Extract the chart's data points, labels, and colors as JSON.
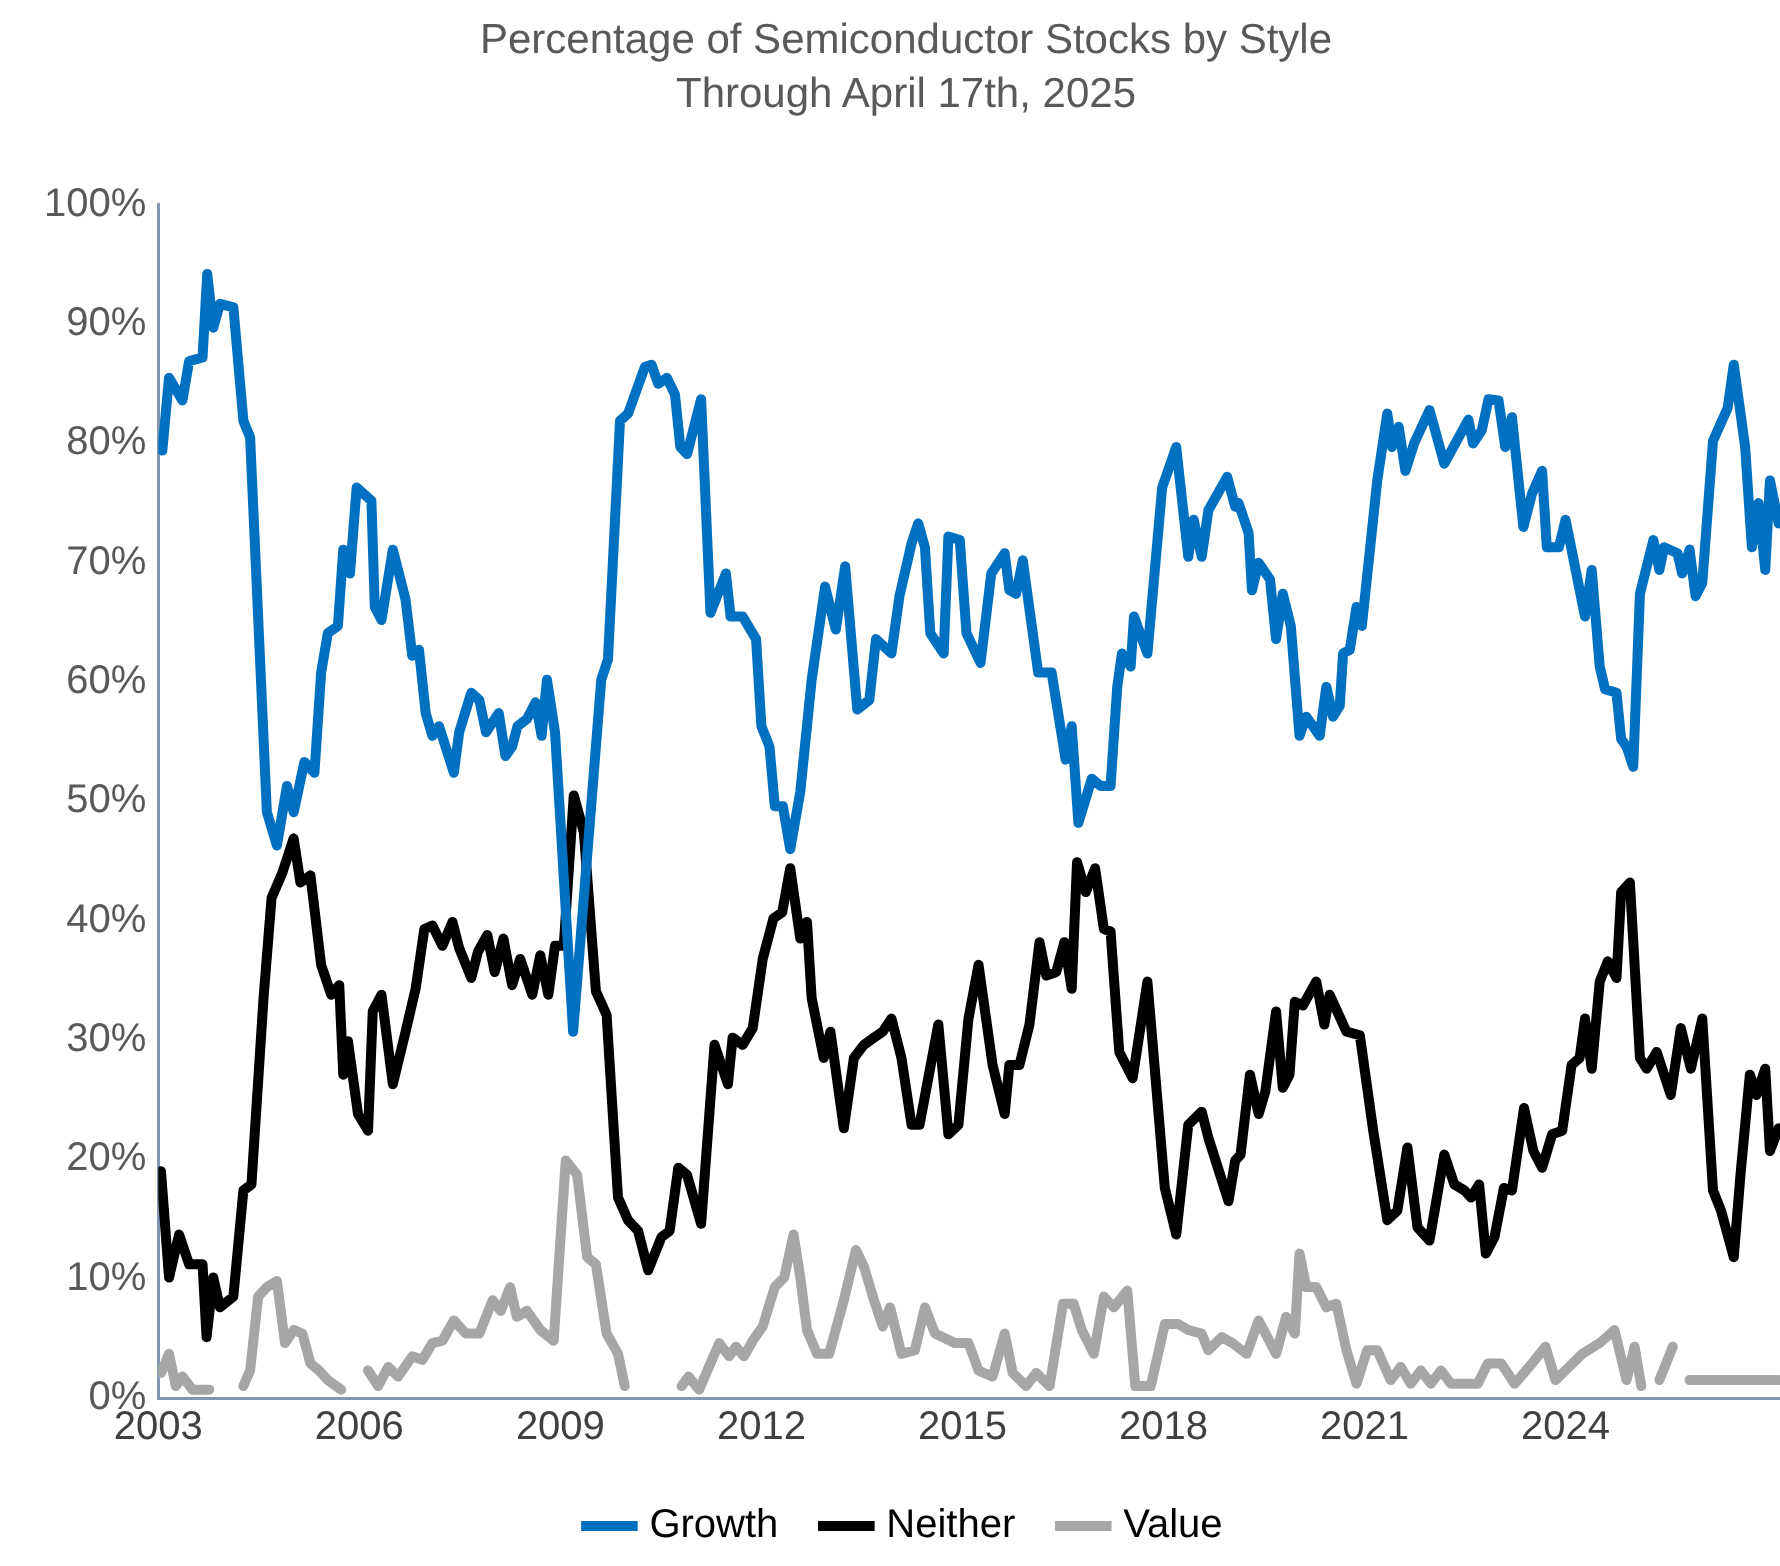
{
  "chart_data": {
    "type": "line",
    "title": "Percentage of Semiconductor Stocks by Style",
    "subtitle": "Through April 17th, 2025",
    "xlim": [
      2003,
      2027.2
    ],
    "xticks": [
      2003,
      2006,
      2009,
      2012,
      2015,
      2018,
      2021,
      2024
    ],
    "ylim": [
      0,
      100
    ],
    "yticks": [
      {
        "value": 0,
        "label": "0%"
      },
      {
        "value": 10,
        "label": "10%"
      },
      {
        "value": 20,
        "label": "20%"
      },
      {
        "value": 30,
        "label": "30%"
      },
      {
        "value": 40,
        "label": "40%"
      },
      {
        "value": 50,
        "label": "50%"
      },
      {
        "value": 60,
        "label": "60%"
      },
      {
        "value": 70,
        "label": "70%"
      },
      {
        "value": 80,
        "label": "80%"
      },
      {
        "value": 90,
        "label": "90%"
      },
      {
        "value": 100,
        "label": "100%"
      }
    ],
    "grid": false,
    "legend": "bottom",
    "marker": "none",
    "line_style": "solid",
    "series": [
      {
        "name": "Growth",
        "color": "#0070c0",
        "x": [
          2003.06,
          2003.16,
          2003.36,
          2003.46,
          2003.66,
          2003.73,
          2003.82,
          2003.92,
          2004.12,
          2004.27,
          2004.37,
          2004.62,
          2004.77,
          2004.92,
          2005.02,
          2005.18,
          2005.33,
          2005.43,
          2005.53,
          2005.68,
          2005.76,
          2005.86,
          2005.96,
          2006.18,
          2006.23,
          2006.33,
          2006.5,
          2006.69,
          2006.79,
          2006.89,
          2006.99,
          2007.09,
          2007.19,
          2007.41,
          2007.49,
          2007.67,
          2007.79,
          2007.89,
          2008.08,
          2008.18,
          2008.28,
          2008.36,
          2008.5,
          2008.63,
          2008.72,
          2008.8,
          2008.92,
          2009.19,
          2009.61,
          2009.71,
          2009.89,
          2010.01,
          2010.26,
          2010.36,
          2010.46,
          2010.59,
          2010.71,
          2010.79,
          2010.89,
          2011.1,
          2011.24,
          2011.47,
          2011.54,
          2011.72,
          2011.92,
          2012.0,
          2012.12,
          2012.2,
          2012.32,
          2012.43,
          2012.58,
          2012.75,
          2012.95,
          2013.11,
          2013.25,
          2013.43,
          2013.61,
          2013.71,
          2013.94,
          2014.06,
          2014.24,
          2014.34,
          2014.44,
          2014.52,
          2014.72,
          2014.79,
          2014.96,
          2015.06,
          2015.27,
          2015.43,
          2015.63,
          2015.7,
          2015.8,
          2015.9,
          2016.13,
          2016.33,
          2016.54,
          2016.63,
          2016.73,
          2016.93,
          2017.06,
          2017.21,
          2017.31,
          2017.38,
          2017.51,
          2017.56,
          2017.76,
          2017.98,
          2018.19,
          2018.37,
          2018.45,
          2018.57,
          2018.67,
          2018.95,
          2019.07,
          2019.12,
          2019.27,
          2019.32,
          2019.42,
          2019.59,
          2019.68,
          2019.78,
          2019.9,
          2020.03,
          2020.13,
          2020.33,
          2020.43,
          2020.53,
          2020.63,
          2020.68,
          2020.78,
          2020.88,
          2020.96,
          2021.19,
          2021.34,
          2021.41,
          2021.51,
          2021.61,
          2021.74,
          2021.97,
          2022.19,
          2022.55,
          2022.62,
          2022.75,
          2022.85,
          2023.0,
          2023.1,
          2023.2,
          2023.37,
          2023.5,
          2023.65,
          2023.72,
          2023.9,
          2024.0,
          2024.29,
          2024.39,
          2024.51,
          2024.59,
          2024.76,
          2024.83,
          2024.91,
          2025.01,
          2025.11,
          2025.31,
          2025.4,
          2025.47,
          2025.67,
          2025.74,
          2025.85,
          2025.94,
          2026.04,
          2026.2,
          2026.42,
          2026.51,
          2026.68,
          2026.78,
          2026.88,
          2026.98,
          2027.05,
          2027.18
        ],
        "values": [
          79.4,
          85.5,
          83.6,
          86.9,
          87.2,
          94.2,
          89.7,
          91.7,
          91.4,
          81.9,
          80.5,
          49.1,
          46.3,
          51.3,
          49.1,
          53.3,
          52.4,
          60.8,
          64.1,
          64.7,
          71.1,
          69.1,
          76.3,
          75.2,
          66.3,
          65.2,
          71.1,
          66.9,
          62.2,
          62.7,
          57.4,
          55.5,
          56.3,
          52.4,
          55.8,
          59.1,
          58.5,
          55.8,
          57.4,
          53.8,
          54.6,
          56.3,
          56.9,
          58.3,
          55.5,
          60.2,
          55.8,
          30.7,
          60.2,
          61.9,
          81.9,
          82.5,
          86.4,
          86.6,
          85.0,
          85.5,
          84.1,
          79.7,
          79.1,
          83.7,
          65.8,
          69.1,
          65.5,
          65.5,
          63.6,
          56.3,
          54.6,
          49.6,
          49.6,
          46.0,
          50.8,
          60.2,
          68.0,
          64.4,
          69.7,
          57.7,
          58.5,
          63.6,
          62.4,
          67.2,
          71.6,
          73.3,
          71.3,
          64.1,
          62.4,
          72.2,
          71.9,
          64.1,
          61.6,
          69.1,
          70.8,
          67.7,
          67.4,
          70.2,
          60.8,
          60.8,
          53.5,
          56.3,
          48.2,
          51.9,
          51.3,
          51.3,
          59.6,
          62.4,
          61.3,
          65.5,
          62.4,
          76.3,
          79.7,
          70.5,
          73.6,
          70.5,
          74.4,
          77.2,
          74.7,
          75.0,
          72.5,
          67.7,
          70.0,
          68.6,
          63.6,
          67.4,
          64.7,
          55.5,
          57.1,
          55.5,
          59.6,
          57.1,
          58.0,
          62.4,
          62.7,
          66.3,
          64.7,
          76.9,
          82.5,
          79.7,
          81.4,
          77.7,
          80.0,
          82.8,
          78.3,
          82.0,
          80.0,
          81.1,
          83.7,
          83.6,
          79.7,
          82.2,
          73.0,
          75.8,
          77.7,
          71.3,
          71.3,
          73.6,
          65.5,
          69.4,
          61.3,
          59.4,
          59.1,
          55.2,
          54.6,
          52.9,
          67.4,
          71.9,
          69.4,
          71.3,
          70.8,
          69.1,
          71.1,
          67.2,
          68.3,
          80.2,
          83.0,
          86.6,
          79.7,
          71.3,
          75.0,
          69.4,
          76.9,
          73.3
        ]
      },
      {
        "name": "Neither",
        "color": "#000000",
        "x": [
          2003.04,
          2003.16,
          2003.31,
          2003.46,
          2003.66,
          2003.72,
          2003.82,
          2003.92,
          2004.12,
          2004.27,
          2004.39,
          2004.57,
          2004.69,
          2004.85,
          2005.02,
          2005.12,
          2005.27,
          2005.43,
          2005.58,
          2005.7,
          2005.76,
          2005.83,
          2005.98,
          2006.13,
          2006.2,
          2006.33,
          2006.5,
          2006.69,
          2006.84,
          2006.97,
          2007.09,
          2007.24,
          2007.39,
          2007.49,
          2007.67,
          2007.77,
          2007.91,
          2008.02,
          2008.15,
          2008.28,
          2008.4,
          2008.58,
          2008.7,
          2008.82,
          2008.92,
          2009.05,
          2009.2,
          2009.35,
          2009.53,
          2009.69,
          2009.86,
          2010.01,
          2010.16,
          2010.31,
          2010.51,
          2010.63,
          2010.76,
          2010.89,
          2011.1,
          2011.3,
          2011.5,
          2011.57,
          2011.72,
          2011.87,
          2012.02,
          2012.18,
          2012.31,
          2012.43,
          2012.58,
          2012.68,
          2012.75,
          2012.93,
          2013.03,
          2013.23,
          2013.38,
          2013.53,
          2013.68,
          2013.81,
          2013.94,
          2014.09,
          2014.24,
          2014.36,
          2014.64,
          2014.79,
          2014.94,
          2015.09,
          2015.24,
          2015.45,
          2015.63,
          2015.7,
          2015.85,
          2016.0,
          2016.15,
          2016.25,
          2016.4,
          2016.52,
          2016.63,
          2016.71,
          2016.84,
          2016.98,
          2017.11,
          2017.21,
          2017.34,
          2017.54,
          2017.76,
          2018.02,
          2018.19,
          2018.37,
          2018.57,
          2018.67,
          2018.97,
          2019.07,
          2019.15,
          2019.29,
          2019.42,
          2019.52,
          2019.68,
          2019.78,
          2019.88,
          2019.96,
          2020.08,
          2020.28,
          2020.4,
          2020.48,
          2020.73,
          2020.93,
          2021.13,
          2021.34,
          2021.49,
          2021.64,
          2021.79,
          2021.97,
          2022.19,
          2022.34,
          2022.49,
          2022.59,
          2022.71,
          2022.81,
          2022.94,
          2023.08,
          2023.2,
          2023.38,
          2023.52,
          2023.65,
          2023.8,
          2023.95,
          2024.09,
          2024.21,
          2024.29,
          2024.39,
          2024.51,
          2024.63,
          2024.76,
          2024.83,
          2024.96,
          2025.11,
          2025.21,
          2025.36,
          2025.57,
          2025.72,
          2025.87,
          2026.04,
          2026.2,
          2026.32,
          2026.51,
          2026.61,
          2026.75,
          2026.85,
          2026.98,
          2027.05,
          2027.18
        ],
        "values": [
          19.0,
          10.1,
          13.7,
          11.2,
          11.2,
          5.1,
          10.1,
          7.6,
          8.5,
          17.4,
          17.9,
          33.5,
          41.9,
          44.0,
          46.9,
          43.2,
          43.8,
          36.3,
          33.8,
          34.6,
          27.1,
          29.9,
          23.8,
          22.4,
          32.4,
          33.8,
          26.3,
          30.7,
          34.3,
          39.3,
          39.6,
          37.9,
          39.9,
          37.7,
          35.2,
          37.4,
          38.8,
          35.7,
          38.5,
          34.6,
          36.8,
          33.8,
          37.1,
          33.8,
          37.9,
          37.9,
          50.5,
          47.4,
          34.1,
          32.1,
          16.8,
          14.9,
          14.0,
          10.7,
          13.5,
          14.0,
          19.3,
          18.7,
          14.6,
          29.6,
          26.3,
          30.2,
          29.6,
          31.0,
          36.8,
          40.2,
          40.7,
          44.4,
          38.5,
          39.9,
          33.5,
          28.5,
          30.7,
          22.6,
          28.5,
          29.6,
          30.2,
          30.7,
          31.8,
          28.5,
          22.9,
          22.9,
          31.3,
          22.1,
          22.9,
          31.8,
          36.3,
          27.9,
          23.8,
          27.9,
          27.9,
          31.3,
          38.2,
          35.4,
          35.7,
          38.2,
          34.3,
          44.9,
          42.4,
          44.4,
          39.3,
          39.1,
          29.0,
          26.8,
          34.9,
          17.6,
          13.7,
          22.9,
          24.0,
          21.8,
          16.5,
          19.9,
          20.4,
          27.1,
          23.8,
          25.7,
          32.4,
          26.0,
          27.1,
          33.2,
          32.9,
          34.9,
          31.3,
          33.8,
          30.7,
          30.4,
          22.4,
          14.9,
          15.7,
          21.0,
          14.3,
          13.2,
          20.4,
          17.9,
          17.4,
          16.8,
          17.9,
          12.1,
          13.5,
          17.6,
          17.4,
          24.3,
          20.7,
          19.3,
          22.1,
          22.4,
          27.9,
          28.5,
          31.8,
          27.6,
          34.9,
          36.6,
          35.2,
          42.4,
          43.2,
          28.5,
          27.6,
          29.0,
          25.4,
          31.0,
          27.6,
          31.8,
          17.4,
          15.7,
          11.8,
          18.7,
          27.1,
          25.4,
          27.6,
          20.7,
          22.6
        ]
      },
      {
        "name": "Value",
        "color": "#a6a6a6",
        "x": [
          2003.04,
          2003.16,
          2003.26,
          2003.36,
          2003.51,
          2003.76,
          2004.0,
          2004.27,
          2004.37,
          2004.49,
          2004.62,
          2004.77,
          2004.89,
          2005.02,
          2005.15,
          2005.27,
          2005.4,
          2005.53,
          2005.73,
          2005.9,
          2006.13,
          2006.28,
          2006.43,
          2006.58,
          2006.79,
          2006.94,
          2007.09,
          2007.24,
          2007.41,
          2007.59,
          2007.79,
          2007.99,
          2008.11,
          2008.25,
          2008.35,
          2008.5,
          2008.7,
          2008.9,
          2009.08,
          2009.25,
          2009.4,
          2009.53,
          2009.69,
          2009.86,
          2009.96,
          2010.4,
          2010.81,
          2010.91,
          2011.07,
          2011.37,
          2011.52,
          2011.62,
          2011.74,
          2011.87,
          2012.02,
          2012.2,
          2012.34,
          2012.48,
          2012.58,
          2012.68,
          2012.83,
          2013.01,
          2013.23,
          2013.41,
          2013.53,
          2013.68,
          2013.81,
          2013.92,
          2014.09,
          2014.29,
          2014.44,
          2014.59,
          2014.89,
          2015.09,
          2015.24,
          2015.45,
          2015.63,
          2015.75,
          2015.95,
          2016.1,
          2016.3,
          2016.5,
          2016.66,
          2016.78,
          2016.96,
          2017.11,
          2017.26,
          2017.46,
          2017.58,
          2017.81,
          2018.02,
          2018.22,
          2018.37,
          2018.57,
          2018.67,
          2018.87,
          2019.03,
          2019.24,
          2019.42,
          2019.68,
          2019.83,
          2019.96,
          2020.03,
          2020.13,
          2020.28,
          2020.43,
          2020.58,
          2020.73,
          2020.88,
          2021.04,
          2021.19,
          2021.39,
          2021.54,
          2021.69,
          2021.84,
          2021.99,
          2022.14,
          2022.29,
          2022.49,
          2022.69,
          2022.84,
          2023.04,
          2023.24,
          2023.5,
          2023.7,
          2023.85,
          2024.05,
          2024.25,
          2024.51,
          2024.73,
          2024.91,
          2025.03,
          2025.13,
          2025.3,
          2025.4,
          2025.6,
          2025.72,
          2025.85,
          2026.2,
          2026.52,
          2026.86,
          2027.18
        ],
        "values": [
          2.1,
          3.7,
          1.0,
          1.8,
          0.7,
          0.7,
          null,
          1.0,
          2.3,
          8.5,
          9.3,
          9.8,
          4.6,
          5.7,
          5.4,
          2.9,
          2.3,
          1.5,
          0.7,
          null,
          2.3,
          1.0,
          2.6,
          1.8,
          3.5,
          3.2,
          4.6,
          4.8,
          6.5,
          5.4,
          5.4,
          8.2,
          7.3,
          9.3,
          6.8,
          7.3,
          5.7,
          4.8,
          19.9,
          18.7,
          11.8,
          11.2,
          5.4,
          3.7,
          1.0,
          null,
          1.0,
          1.8,
          0.7,
          4.6,
          3.5,
          4.3,
          3.5,
          4.8,
          6.0,
          9.3,
          10.1,
          13.7,
          10.1,
          5.7,
          3.7,
          3.7,
          8.2,
          12.4,
          11.0,
          8.2,
          6.0,
          7.6,
          3.7,
          4.0,
          7.6,
          5.4,
          4.6,
          4.6,
          2.3,
          1.8,
          5.4,
          2.1,
          1.0,
          2.1,
          1.0,
          7.9,
          7.9,
          5.7,
          3.7,
          8.5,
          7.6,
          9.0,
          1.0,
          1.0,
          6.2,
          6.2,
          5.7,
          5.4,
          4.0,
          5.1,
          4.6,
          3.7,
          6.5,
          3.7,
          6.8,
          5.4,
          12.1,
          9.3,
          9.3,
          7.6,
          7.9,
          4.0,
          1.2,
          4.0,
          4.0,
          1.5,
          2.6,
          1.2,
          2.3,
          1.2,
          2.3,
          1.2,
          1.2,
          1.2,
          2.9,
          2.9,
          1.2,
          2.9,
          4.3,
          1.5,
          2.6,
          3.7,
          4.6,
          5.7,
          1.5,
          4.3,
          1.0,
          null,
          1.5,
          4.3,
          null,
          1.5,
          1.5,
          1.5,
          1.5,
          1.5
        ]
      }
    ]
  }
}
